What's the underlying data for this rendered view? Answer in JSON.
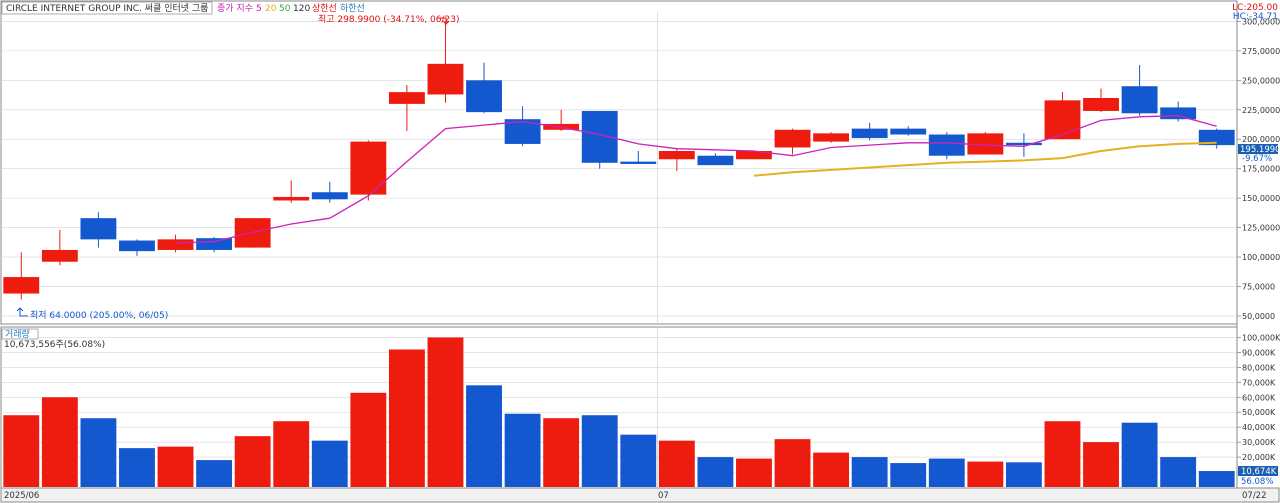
{
  "header": {
    "title": "CIRCLE INTERNET GROUP INC.  써클 인터넷 그룹",
    "legend_label": "종가 지수",
    "ma_periods": [
      "5",
      "20",
      "50",
      "120"
    ],
    "upper_limit": "상한선",
    "lower_limit": "하한선",
    "lc_label": "LC:205.00",
    "hc_label": "HC:-34.71"
  },
  "volume_header": {
    "title": "거래량",
    "value_label": "10,673,556주(56.08%)"
  },
  "annotations": {
    "high": "최고 298.9900 (-34.71%, 06/23)",
    "low": "최저 64.0000 (205.00%, 06/05)",
    "current_price": "195.1990",
    "current_pct": "-9.67%",
    "current_volume": "10,674K",
    "current_volume_pct": "56.08%"
  },
  "colors": {
    "up": "#ee1c0e",
    "down": "#1458d0",
    "ma5": "#cc22bb",
    "ma20": "#e6b020",
    "grid": "#d6d6d6",
    "border": "#8a8a8a",
    "label_box": "#1a5fb4"
  },
  "chart_data": [
    {
      "type": "candlestick",
      "title": "",
      "x_axis_labels": [
        "2025/06",
        "07",
        "07/22"
      ],
      "y_tick_labels": [
        "300,0000",
        "275,0000",
        "250,0000",
        "225,0000",
        "200,0000",
        "175,0000",
        "150,0000",
        "125,0000",
        "100,0000",
        "75,0000",
        "50,0000"
      ],
      "yticks": [
        300,
        275,
        250,
        225,
        200,
        175,
        150,
        125,
        100,
        75,
        50
      ],
      "ylim": [
        44,
        308
      ],
      "month_break_index": 17,
      "candles": [
        {
          "o": 69,
          "h": 104,
          "l": 64,
          "c": 83
        },
        {
          "o": 96,
          "h": 123,
          "l": 93,
          "c": 106
        },
        {
          "o": 133,
          "h": 138,
          "l": 108,
          "c": 115
        },
        {
          "o": 114,
          "h": 115,
          "l": 101,
          "c": 105
        },
        {
          "o": 106,
          "h": 119,
          "l": 104,
          "c": 115
        },
        {
          "o": 116,
          "h": 117,
          "l": 104,
          "c": 106
        },
        {
          "o": 108,
          "h": 133,
          "l": 108,
          "c": 133
        },
        {
          "o": 148,
          "h": 165,
          "l": 146,
          "c": 151
        },
        {
          "o": 155,
          "h": 164,
          "l": 146,
          "c": 149
        },
        {
          "o": 153,
          "h": 199,
          "l": 148,
          "c": 198
        },
        {
          "o": 230,
          "h": 246,
          "l": 207,
          "c": 240
        },
        {
          "o": 238,
          "h": 299,
          "l": 231,
          "c": 264
        },
        {
          "o": 250,
          "h": 265,
          "l": 222,
          "c": 223
        },
        {
          "o": 217,
          "h": 228,
          "l": 194,
          "c": 196
        },
        {
          "o": 208,
          "h": 225,
          "l": 207,
          "c": 213
        },
        {
          "o": 224,
          "h": 224,
          "l": 175,
          "c": 180
        },
        {
          "o": 181,
          "h": 190,
          "l": 179,
          "c": 179
        },
        {
          "o": 183,
          "h": 192,
          "l": 173,
          "c": 190
        },
        {
          "o": 186,
          "h": 188,
          "l": 178,
          "c": 178
        },
        {
          "o": 183,
          "h": 190,
          "l": 183,
          "c": 190
        },
        {
          "o": 193,
          "h": 209,
          "l": 187,
          "c": 208
        },
        {
          "o": 198,
          "h": 206,
          "l": 197,
          "c": 205
        },
        {
          "o": 209,
          "h": 214,
          "l": 199,
          "c": 201
        },
        {
          "o": 209,
          "h": 211,
          "l": 203,
          "c": 204
        },
        {
          "o": 204,
          "h": 206,
          "l": 183,
          "c": 186
        },
        {
          "o": 187,
          "h": 206,
          "l": 187,
          "c": 205
        },
        {
          "o": 197,
          "h": 205,
          "l": 185,
          "c": 195
        },
        {
          "o": 200,
          "h": 240,
          "l": 200,
          "c": 233
        },
        {
          "o": 224,
          "h": 243,
          "l": 223,
          "c": 235
        },
        {
          "o": 245,
          "h": 263,
          "l": 220,
          "c": 222
        },
        {
          "o": 227,
          "h": 232,
          "l": 215,
          "c": 217
        },
        {
          "o": 208,
          "h": 209,
          "l": 192,
          "c": 195
        }
      ],
      "ma5": [
        null,
        null,
        null,
        null,
        112,
        113,
        121,
        128,
        133,
        152,
        181,
        209,
        212,
        215,
        210,
        204,
        196,
        192,
        191,
        190,
        186,
        193,
        195,
        197,
        197,
        195,
        194,
        204,
        216,
        219,
        220,
        211
      ],
      "ma20": [
        null,
        null,
        null,
        null,
        null,
        null,
        null,
        null,
        null,
        null,
        null,
        null,
        null,
        null,
        null,
        null,
        null,
        null,
        null,
        169,
        172,
        174,
        176,
        178,
        180,
        181,
        182,
        184,
        190,
        194,
        196,
        197
      ]
    },
    {
      "type": "bar",
      "title": "거래량",
      "y_tick_labels": [
        "100,000K",
        "90,000K",
        "80,000K",
        "70,000K",
        "60,000K",
        "50,000K",
        "40,000K",
        "30,000K",
        "20,000K",
        "10,000K"
      ],
      "yticks": [
        100000,
        90000,
        80000,
        70000,
        60000,
        50000,
        40000,
        30000,
        20000,
        10000
      ],
      "ylim": [
        0,
        103000
      ],
      "unit": "K",
      "values": [
        48000,
        60000,
        46000,
        26000,
        27000,
        18000,
        34000,
        44000,
        31000,
        63000,
        92000,
        100000,
        68000,
        49000,
        46000,
        48000,
        35000,
        31000,
        20000,
        19000,
        32000,
        23000,
        20000,
        16000,
        19000,
        17000,
        16500,
        44000,
        30000,
        43000,
        20000,
        10674
      ]
    }
  ]
}
